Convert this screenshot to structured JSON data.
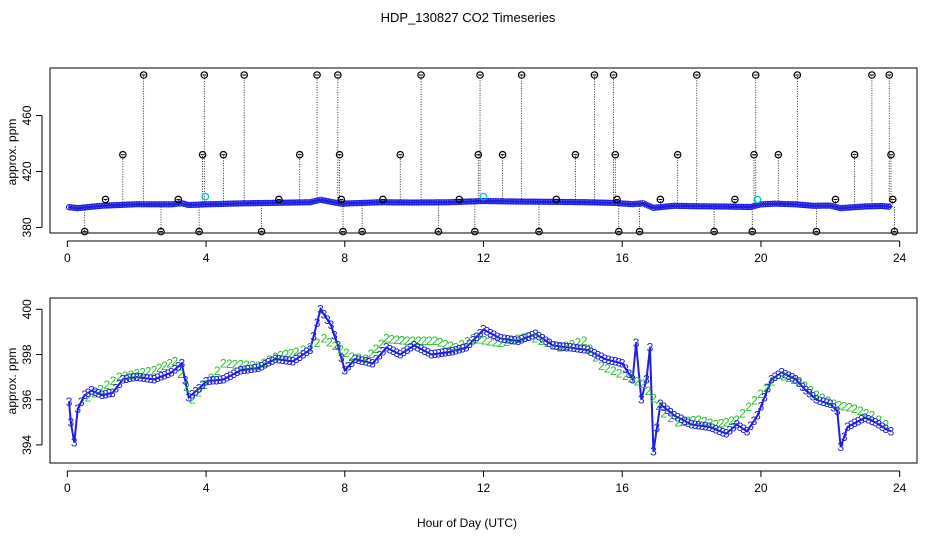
{
  "page": {
    "title": "HDP_130827  CO2 Timeseries"
  },
  "chart_data": [
    {
      "type": "scatter",
      "panel": "top",
      "ylabel": "approx. ppm",
      "xlabel": "",
      "xlim": [
        -0.5,
        24.5
      ],
      "ylim": [
        376,
        494
      ],
      "xticks": [
        0,
        4,
        8,
        12,
        16,
        20,
        24
      ],
      "yticks": [
        380,
        420,
        460
      ],
      "xtick_labels": [
        "0",
        "4",
        "8",
        "12",
        "16",
        "20",
        "24"
      ],
      "ytick_labels": [
        "380",
        "420",
        "460"
      ],
      "baseline": [
        [
          0.05,
          394.5
        ],
        [
          0.3,
          393.8
        ],
        [
          1.0,
          395.5
        ],
        [
          2.0,
          396.6
        ],
        [
          3.0,
          396.5
        ],
        [
          3.3,
          397.3
        ],
        [
          3.5,
          396.0
        ],
        [
          4.0,
          396.5
        ],
        [
          5.0,
          397.2
        ],
        [
          6.0,
          397.6
        ],
        [
          7.0,
          398.0
        ],
        [
          7.3,
          399.8
        ],
        [
          7.6,
          398.3
        ],
        [
          7.9,
          397.0
        ],
        [
          8.5,
          397.5
        ],
        [
          9.0,
          398.0
        ],
        [
          10.0,
          397.8
        ],
        [
          11.0,
          398.0
        ],
        [
          12.0,
          398.9
        ],
        [
          13.0,
          398.5
        ],
        [
          14.0,
          398.3
        ],
        [
          15.0,
          398.0
        ],
        [
          15.8,
          397.5
        ],
        [
          16.3,
          396.6
        ],
        [
          16.6,
          397.3
        ],
        [
          16.9,
          394.0
        ],
        [
          17.5,
          395.5
        ],
        [
          18.0,
          395.2
        ],
        [
          19.0,
          394.9
        ],
        [
          19.7,
          394.6
        ],
        [
          20.0,
          396.5
        ],
        [
          20.4,
          397.0
        ],
        [
          21.0,
          396.5
        ],
        [
          21.5,
          395.5
        ],
        [
          22.0,
          395.6
        ],
        [
          22.3,
          393.8
        ],
        [
          23.0,
          395.0
        ],
        [
          23.5,
          395.3
        ],
        [
          23.75,
          394.7
        ]
      ],
      "spikes": [
        {
          "x": 0.5,
          "y": 377
        },
        {
          "x": 1.1,
          "y": 400
        },
        {
          "x": 1.6,
          "y": 432
        },
        {
          "x": 2.2,
          "y": 489
        },
        {
          "x": 2.7,
          "y": 377
        },
        {
          "x": 3.2,
          "y": 400
        },
        {
          "x": 3.8,
          "y": 377
        },
        {
          "x": 3.9,
          "y": 432
        },
        {
          "x": 3.95,
          "y": 489
        },
        {
          "x": 4.5,
          "y": 432
        },
        {
          "x": 5.1,
          "y": 489
        },
        {
          "x": 5.6,
          "y": 377
        },
        {
          "x": 6.1,
          "y": 400
        },
        {
          "x": 6.7,
          "y": 432
        },
        {
          "x": 7.2,
          "y": 489
        },
        {
          "x": 7.8,
          "y": 489
        },
        {
          "x": 7.85,
          "y": 432
        },
        {
          "x": 7.9,
          "y": 400
        },
        {
          "x": 7.95,
          "y": 377
        },
        {
          "x": 8.5,
          "y": 377
        },
        {
          "x": 9.1,
          "y": 400
        },
        {
          "x": 9.6,
          "y": 432
        },
        {
          "x": 10.2,
          "y": 489
        },
        {
          "x": 10.7,
          "y": 377
        },
        {
          "x": 11.3,
          "y": 400
        },
        {
          "x": 11.75,
          "y": 377
        },
        {
          "x": 11.85,
          "y": 432
        },
        {
          "x": 11.9,
          "y": 489
        },
        {
          "x": 12.55,
          "y": 432
        },
        {
          "x": 13.1,
          "y": 489
        },
        {
          "x": 13.6,
          "y": 377
        },
        {
          "x": 14.1,
          "y": 400
        },
        {
          "x": 14.65,
          "y": 432
        },
        {
          "x": 15.2,
          "y": 489
        },
        {
          "x": 15.75,
          "y": 489
        },
        {
          "x": 15.8,
          "y": 432
        },
        {
          "x": 15.85,
          "y": 400
        },
        {
          "x": 15.9,
          "y": 377
        },
        {
          "x": 16.5,
          "y": 377
        },
        {
          "x": 17.1,
          "y": 400
        },
        {
          "x": 17.6,
          "y": 432
        },
        {
          "x": 18.15,
          "y": 489
        },
        {
          "x": 18.65,
          "y": 377
        },
        {
          "x": 19.25,
          "y": 400
        },
        {
          "x": 19.75,
          "y": 377
        },
        {
          "x": 19.8,
          "y": 432
        },
        {
          "x": 19.85,
          "y": 489
        },
        {
          "x": 20.5,
          "y": 432
        },
        {
          "x": 21.05,
          "y": 489
        },
        {
          "x": 21.6,
          "y": 377
        },
        {
          "x": 22.15,
          "y": 400
        },
        {
          "x": 22.7,
          "y": 432
        },
        {
          "x": 23.2,
          "y": 489
        },
        {
          "x": 23.7,
          "y": 489
        },
        {
          "x": 23.75,
          "y": 432
        },
        {
          "x": 23.8,
          "y": 400
        },
        {
          "x": 23.85,
          "y": 377
        }
      ],
      "highlights": [
        {
          "x": 3.98,
          "y": 402
        },
        {
          "x": 12.0,
          "y": 402
        },
        {
          "x": 19.9,
          "y": 400
        }
      ],
      "series_colors": {
        "baseline": "#1f1fe0",
        "spike_marker": "#000000",
        "highlight_marker": "#00c8c8"
      }
    },
    {
      "type": "line",
      "panel": "bottom",
      "ylabel": "approx. ppm",
      "xlabel": "Hour of Day (UTC)",
      "xlim": [
        -0.5,
        24.5
      ],
      "ylim": [
        393.2,
        400.5
      ],
      "xticks": [
        0,
        4,
        8,
        12,
        16,
        20,
        24
      ],
      "yticks": [
        394,
        396,
        398,
        400
      ],
      "xtick_labels": [
        "0",
        "4",
        "8",
        "12",
        "16",
        "20",
        "24"
      ],
      "ytick_labels": [
        "394",
        "396",
        "398",
        "400"
      ],
      "marker_labels": {
        "blue": "3",
        "green": "2"
      },
      "series": [
        {
          "name": "blue",
          "color": "#1f1fe0",
          "points": [
            [
              0.05,
              395.9
            ],
            [
              0.1,
              395.0
            ],
            [
              0.2,
              394.1
            ],
            [
              0.3,
              395.6
            ],
            [
              0.5,
              396.2
            ],
            [
              0.7,
              396.4
            ],
            [
              1.0,
              396.2
            ],
            [
              1.3,
              396.3
            ],
            [
              1.6,
              396.9
            ],
            [
              2.0,
              397.0
            ],
            [
              2.5,
              396.9
            ],
            [
              3.0,
              397.2
            ],
            [
              3.3,
              397.6
            ],
            [
              3.5,
              396.1
            ],
            [
              3.8,
              396.5
            ],
            [
              4.0,
              396.8
            ],
            [
              4.5,
              396.9
            ],
            [
              5.0,
              397.3
            ],
            [
              5.5,
              397.4
            ],
            [
              6.0,
              397.8
            ],
            [
              6.5,
              397.7
            ],
            [
              7.0,
              398.2
            ],
            [
              7.3,
              400.0
            ],
            [
              7.6,
              399.3
            ],
            [
              7.8,
              398.4
            ],
            [
              8.0,
              397.3
            ],
            [
              8.3,
              397.8
            ],
            [
              8.8,
              397.6
            ],
            [
              9.2,
              398.3
            ],
            [
              9.6,
              398.0
            ],
            [
              10.0,
              398.4
            ],
            [
              10.5,
              398.0
            ],
            [
              11.0,
              398.1
            ],
            [
              11.5,
              398.3
            ],
            [
              12.0,
              399.1
            ],
            [
              12.5,
              398.7
            ],
            [
              13.0,
              398.6
            ],
            [
              13.5,
              398.9
            ],
            [
              14.0,
              398.4
            ],
            [
              14.5,
              398.3
            ],
            [
              15.0,
              398.2
            ],
            [
              15.5,
              397.8
            ],
            [
              16.0,
              397.6
            ],
            [
              16.3,
              396.9
            ],
            [
              16.4,
              398.5
            ],
            [
              16.55,
              396.0
            ],
            [
              16.7,
              396.9
            ],
            [
              16.8,
              398.3
            ],
            [
              16.9,
              393.7
            ],
            [
              17.1,
              395.8
            ],
            [
              17.5,
              395.3
            ],
            [
              18.0,
              394.9
            ],
            [
              18.5,
              394.8
            ],
            [
              19.0,
              394.5
            ],
            [
              19.3,
              394.9
            ],
            [
              19.6,
              394.6
            ],
            [
              19.9,
              395.3
            ],
            [
              20.3,
              396.9
            ],
            [
              20.6,
              397.2
            ],
            [
              21.0,
              396.9
            ],
            [
              21.3,
              396.4
            ],
            [
              21.6,
              396.0
            ],
            [
              22.0,
              395.8
            ],
            [
              22.2,
              395.5
            ],
            [
              22.3,
              393.9
            ],
            [
              22.5,
              394.8
            ],
            [
              23.0,
              395.2
            ],
            [
              23.3,
              395.0
            ],
            [
              23.6,
              394.7
            ],
            [
              23.75,
              394.6
            ]
          ]
        },
        {
          "name": "green",
          "color": "#22c022",
          "points": [
            [
              0.6,
              396.1
            ],
            [
              1.5,
              397.0
            ],
            [
              2.5,
              397.3
            ],
            [
              3.1,
              397.7
            ],
            [
              3.6,
              396.0
            ],
            [
              4.5,
              397.6
            ],
            [
              5.5,
              397.5
            ],
            [
              6.0,
              397.9
            ],
            [
              6.6,
              398.1
            ],
            [
              7.0,
              398.3
            ],
            [
              7.4,
              398.7
            ],
            [
              8.2,
              397.9
            ],
            [
              8.6,
              397.8
            ],
            [
              9.2,
              398.7
            ],
            [
              9.8,
              398.6
            ],
            [
              10.6,
              398.6
            ],
            [
              11.2,
              398.3
            ],
            [
              11.7,
              398.7
            ],
            [
              12.5,
              398.5
            ],
            [
              13.3,
              398.8
            ],
            [
              14.2,
              398.3
            ],
            [
              14.9,
              398.6
            ],
            [
              15.4,
              397.5
            ],
            [
              16.6,
              396.7
            ],
            [
              17.2,
              395.4
            ],
            [
              17.6,
              395.0
            ],
            [
              18.2,
              395.1
            ],
            [
              18.7,
              394.9
            ],
            [
              19.3,
              395.1
            ],
            [
              20.5,
              397.1
            ],
            [
              21.1,
              396.8
            ],
            [
              21.6,
              396.2
            ],
            [
              22.1,
              395.8
            ],
            [
              22.7,
              395.6
            ],
            [
              23.2,
              395.3
            ],
            [
              23.6,
              394.9
            ]
          ]
        }
      ]
    }
  ]
}
